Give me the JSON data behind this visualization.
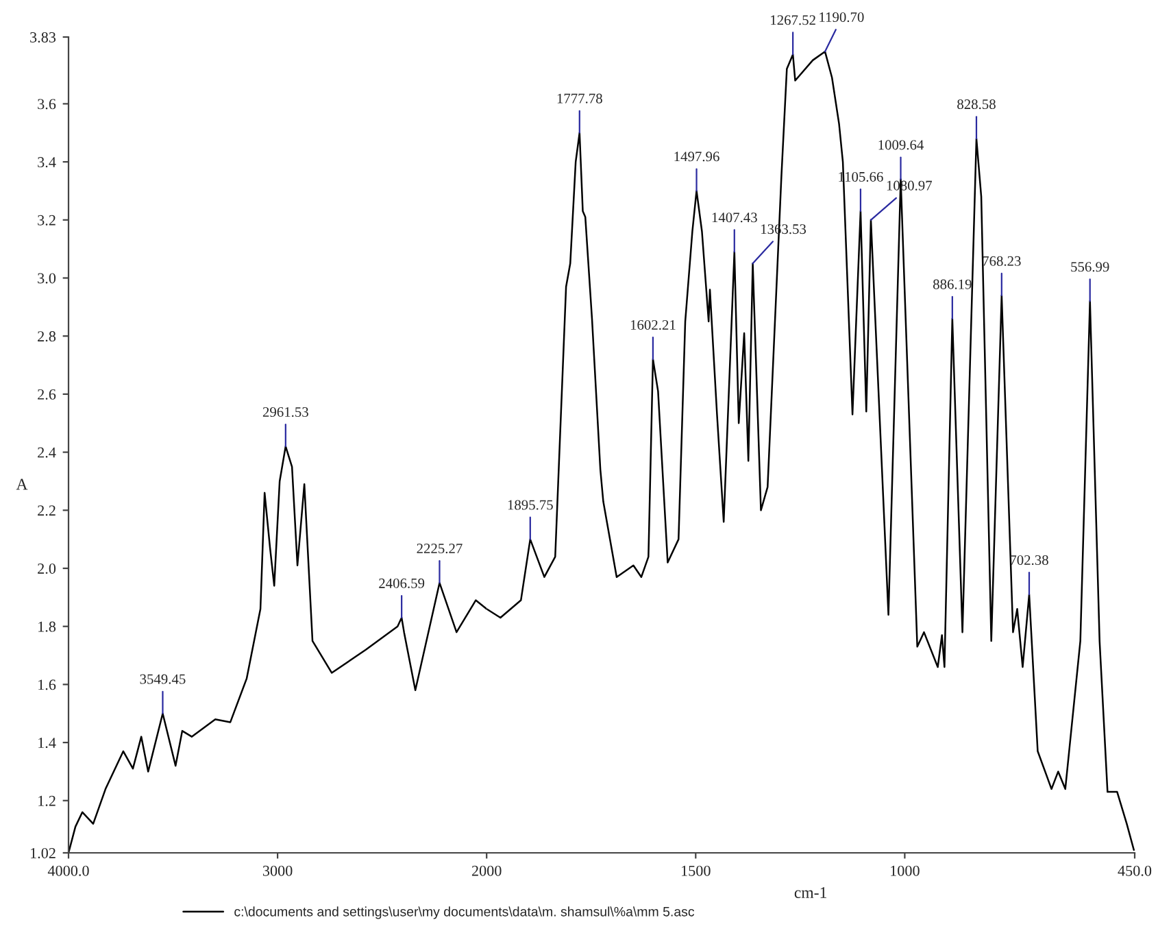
{
  "chart_data": [
    {
      "type": "line",
      "ylabel": "A",
      "xlim": [
        4000,
        2000
      ],
      "xticks": [
        {
          "value": 4000,
          "label": "4000.0"
        },
        3000
      ],
      "ylim": [
        1.02,
        3.83
      ],
      "yticks": [
        1.02,
        1.2,
        1.4,
        1.6,
        1.8,
        {
          "value": 2,
          "label": "2.0"
        },
        2.2,
        2.4,
        2.6,
        2.8,
        {
          "value": 3,
          "label": "3.0"
        },
        3.2,
        3.4,
        3.6,
        3.83
      ],
      "grid": false,
      "legend": "bottom",
      "marker": "none",
      "line_style": "solid",
      "series": [
        {
          "name": "c:\\documents and settings\\user\\my documents\\data\\m. shamsul\\%a\\mm 5.asc",
          "color": "#000000",
          "x": [
            4000,
            3967,
            3934,
            3882,
            3823,
            3738,
            3692,
            3652,
            3619,
            3549.45,
            3488,
            3456,
            3410,
            3298,
            3226,
            3148,
            3082,
            3062,
            3036,
            3016,
            2990,
            2961.53,
            2931,
            2905,
            2872,
            2833,
            2741,
            2577,
            2426,
            2406.59,
            2395,
            2341,
            2225.27,
            2144,
            2052,
            2000
          ],
          "values": [
            1.02,
            1.11,
            1.16,
            1.12,
            1.24,
            1.37,
            1.31,
            1.42,
            1.3,
            1.5,
            1.32,
            1.44,
            1.42,
            1.48,
            1.47,
            1.62,
            1.86,
            2.26,
            2.07,
            1.94,
            2.3,
            2.42,
            2.35,
            2.01,
            2.29,
            1.75,
            1.64,
            1.72,
            1.8,
            1.83,
            1.78,
            1.58,
            1.95,
            1.78,
            1.89,
            1.86
          ]
        }
      ],
      "annotations": [
        {
          "text": "3549.45",
          "x": 3549.45,
          "y": 1.5
        },
        {
          "text": "2961.53",
          "x": 2961.53,
          "y": 2.42
        },
        {
          "text": "2406.59",
          "x": 2406.59,
          "y": 1.83
        },
        {
          "text": "2225.27",
          "x": 2225.27,
          "y": 1.95
        }
      ]
    },
    {
      "type": "line",
      "xlabel": "cm-1",
      "xlim": [
        2000,
        450
      ],
      "xticks": [
        2000,
        1500,
        1000,
        {
          "value": 450,
          "label": "450.0"
        }
      ],
      "ylim": [
        1.02,
        3.83
      ],
      "tick_labels": "x",
      "grid": false,
      "marker": "none",
      "line_style": "solid",
      "series": [
        {
          "color": "#000000",
          "x": [
            2000,
            1967,
            1918,
            1895.75,
            1862,
            1836,
            1810,
            1800,
            1787,
            1777.78,
            1770,
            1764,
            1748,
            1728,
            1721,
            1689,
            1649,
            1630,
            1613,
            1602.21,
            1590,
            1567,
            1541,
            1525,
            1508,
            1497.96,
            1485,
            1469,
            1466,
            1449,
            1433,
            1407.43,
            1397,
            1384,
            1374,
            1363.53,
            1344,
            1328,
            1295,
            1282,
            1267.52,
            1262,
            1220,
            1190.7,
            1174,
            1157,
            1148,
            1125,
            1105.66,
            1092,
            1080.97,
            1039,
            1009.64,
            970,
            954,
            921,
            911,
            905,
            886.19,
            862,
            828.58,
            817,
            793,
            768.23,
            741,
            731,
            718,
            702.38,
            682,
            649,
            633,
            616,
            580,
            556.99,
            534,
            515,
            492,
            469,
            452
          ],
          "values": [
            1.86,
            1.83,
            1.89,
            2.1,
            1.97,
            2.04,
            2.97,
            3.05,
            3.4,
            3.5,
            3.23,
            3.21,
            2.86,
            2.34,
            2.23,
            1.97,
            2.01,
            1.97,
            2.04,
            2.72,
            2.61,
            2.02,
            2.1,
            2.85,
            3.16,
            3.3,
            3.16,
            2.85,
            2.96,
            2.53,
            2.16,
            3.09,
            2.5,
            2.81,
            2.37,
            3.05,
            2.2,
            2.28,
            3.35,
            3.72,
            3.77,
            3.68,
            3.75,
            3.78,
            3.69,
            3.53,
            3.4,
            2.53,
            3.23,
            2.54,
            3.2,
            1.84,
            3.34,
            1.73,
            1.78,
            1.66,
            1.77,
            1.66,
            2.86,
            1.78,
            3.48,
            3.28,
            1.75,
            2.94,
            1.78,
            1.86,
            1.66,
            1.91,
            1.37,
            1.24,
            1.3,
            1.24,
            1.75,
            2.92,
            1.75,
            1.23,
            1.23,
            1.12,
            1.03
          ]
        }
      ],
      "annotations": [
        {
          "text": "1895.75",
          "x": 1895.75,
          "y": 2.1
        },
        {
          "text": "1777.78",
          "x": 1777.78,
          "y": 3.5
        },
        {
          "text": "1602.21",
          "x": 1602.21,
          "y": 2.72
        },
        {
          "text": "1497.96",
          "x": 1497.96,
          "y": 3.3
        },
        {
          "text": "1407.43",
          "x": 1407.43,
          "y": 3.09
        },
        {
          "text": "1363.53",
          "x": 1363.53,
          "y": 3.05
        },
        {
          "text": "1267.52",
          "x": 1267.52,
          "y": 3.77
        },
        {
          "text": "1190.70",
          "x": 1190.7,
          "y": 3.78
        },
        {
          "text": "1105.66",
          "x": 1105.66,
          "y": 3.23
        },
        {
          "text": "1080.97",
          "x": 1080.97,
          "y": 3.2
        },
        {
          "text": "1009.64",
          "x": 1009.64,
          "y": 3.34
        },
        {
          "text": "886.19",
          "x": 886.19,
          "y": 2.86
        },
        {
          "text": "828.58",
          "x": 828.58,
          "y": 3.48
        },
        {
          "text": "768.23",
          "x": 768.23,
          "y": 2.94
        },
        {
          "text": "702.38",
          "x": 702.38,
          "y": 1.91
        },
        {
          "text": "556.99",
          "x": 556.99,
          "y": 2.92
        }
      ]
    }
  ]
}
